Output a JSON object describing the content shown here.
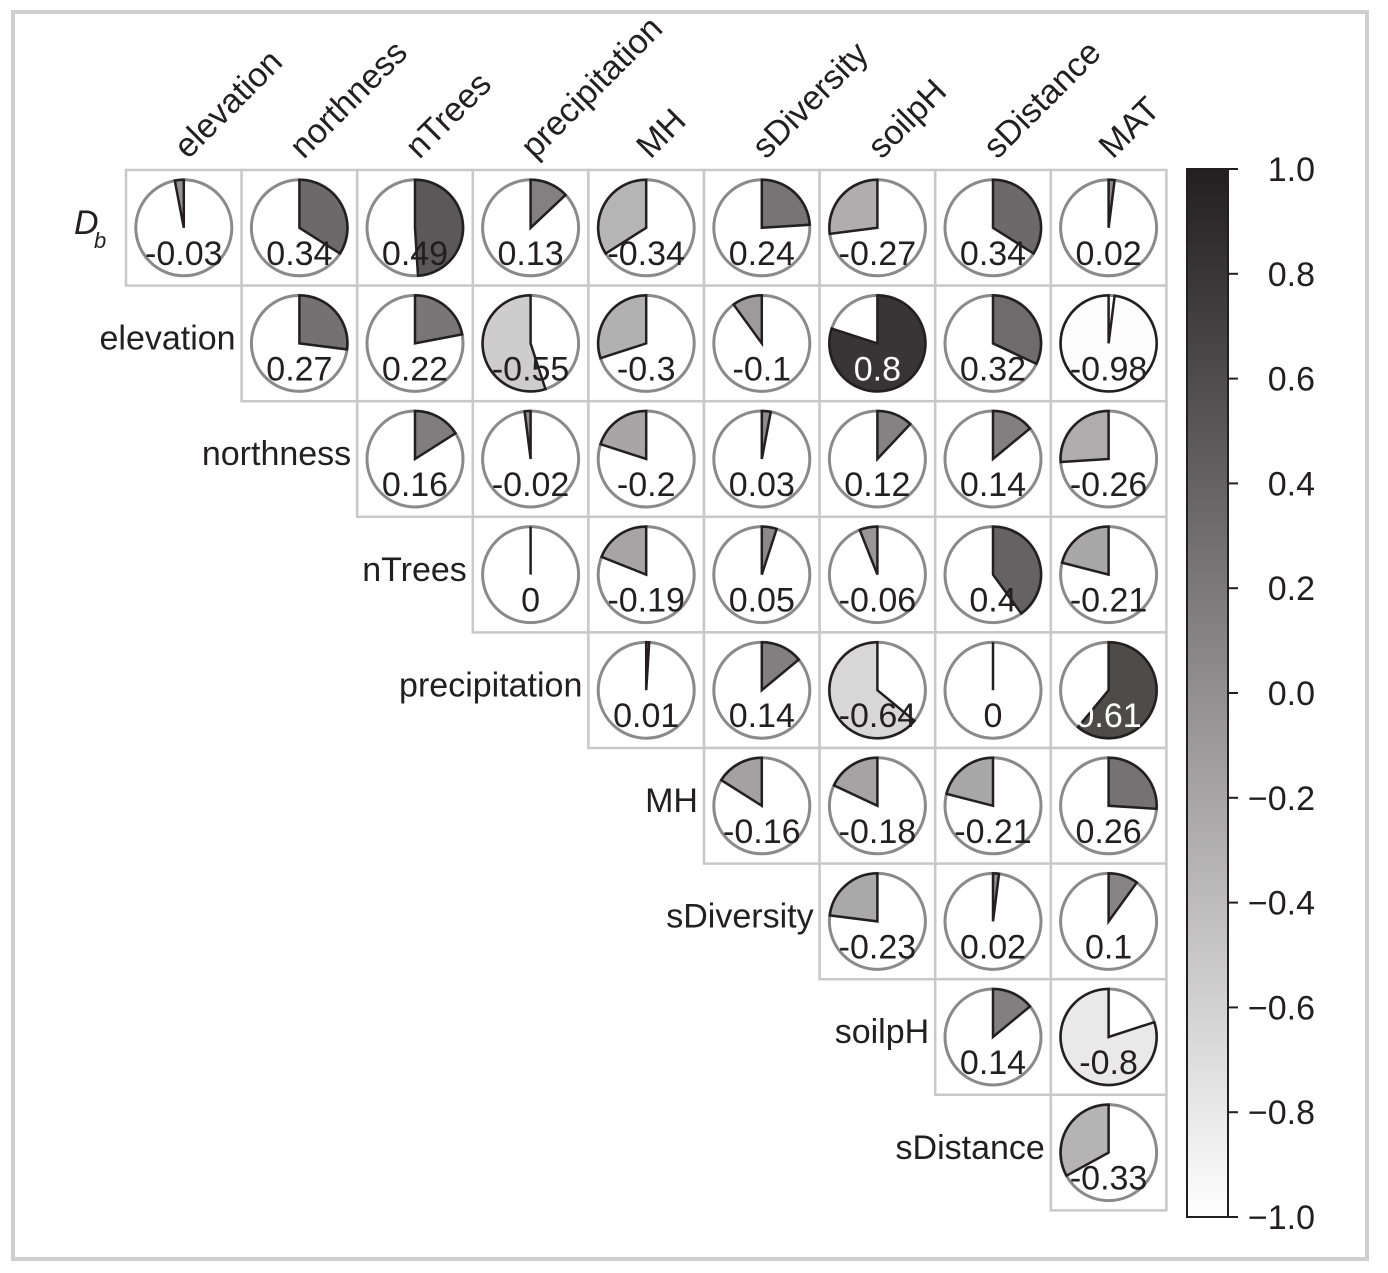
{
  "chart_data": {
    "type": "correlogram-pie",
    "title": "",
    "columns": [
      "elevation",
      "northness",
      "nTrees",
      "precipitation",
      "MH",
      "sDiversity",
      "soilpH",
      "sDistance",
      "MAT"
    ],
    "rows": [
      {
        "label": "D",
        "label_sub": "b",
        "start_col": 0,
        "values": [
          -0.03,
          0.34,
          0.49,
          0.13,
          -0.34,
          0.24,
          -0.27,
          0.34,
          0.02
        ]
      },
      {
        "label": "elevation",
        "start_col": 1,
        "values": [
          0.27,
          0.22,
          -0.55,
          -0.3,
          -0.1,
          0.8,
          0.32,
          -0.98
        ]
      },
      {
        "label": "northness",
        "start_col": 2,
        "values": [
          0.16,
          -0.02,
          -0.2,
          0.03,
          0.12,
          0.14,
          -0.26
        ]
      },
      {
        "label": "nTrees",
        "start_col": 3,
        "values": [
          0,
          -0.19,
          0.05,
          -0.06,
          0.4,
          -0.21
        ]
      },
      {
        "label": "precipitation",
        "start_col": 4,
        "values": [
          0.01,
          0.14,
          -0.64,
          0,
          0.61
        ]
      },
      {
        "label": "MH",
        "start_col": 5,
        "values": [
          -0.16,
          -0.18,
          -0.21,
          0.26
        ]
      },
      {
        "label": "sDiversity",
        "start_col": 6,
        "values": [
          -0.23,
          0.02,
          0.1
        ]
      },
      {
        "label": "soilpH",
        "start_col": 7,
        "values": [
          0.14,
          -0.8
        ]
      },
      {
        "label": "sDistance",
        "start_col": 8,
        "values": [
          -0.33
        ]
      }
    ],
    "value_labels": {
      "D": [
        "-0.03",
        "0.34",
        "0.49",
        "0.13",
        "-0.34",
        "0.24",
        "-0.27",
        "0.34",
        "0.02"
      ],
      "elevation": [
        "0.27",
        "0.22",
        "-0.55",
        "-0.3",
        "-0.1",
        "0.8",
        "0.32",
        "-0.98"
      ],
      "northness": [
        "0.16",
        "-0.02",
        "-0.2",
        "0.03",
        "0.12",
        "0.14",
        "-0.26"
      ],
      "nTrees": [
        "0",
        "-0.19",
        "0.05",
        "-0.06",
        "0.4",
        "-0.21"
      ],
      "precipitation": [
        "0.01",
        "0.14",
        "-0.64",
        "0",
        "0.61"
      ],
      "MH": [
        "-0.16",
        "-0.18",
        "-0.21",
        "0.26"
      ],
      "sDiversity": [
        "-0.23",
        "0.02",
        "0.1"
      ],
      "soilpH": [
        "0.14",
        "-0.8"
      ],
      "sDistance": [
        "-0.33"
      ]
    },
    "colorbar": {
      "range": [
        -1.0,
        1.0
      ],
      "ticks": [
        1.0,
        0.8,
        0.6,
        0.4,
        0.2,
        0.0,
        -0.2,
        -0.4,
        -0.6,
        -0.8,
        -1.0
      ],
      "tick_labels": [
        "1.0",
        "0.8",
        "0.6",
        "0.4",
        "0.2",
        "0.0",
        "−0.2",
        "−0.4",
        "−0.6",
        "−0.8",
        "−1.0"
      ],
      "color_low": "#ffffff",
      "color_high": "#231f20"
    },
    "grid": true,
    "legend": "right"
  }
}
